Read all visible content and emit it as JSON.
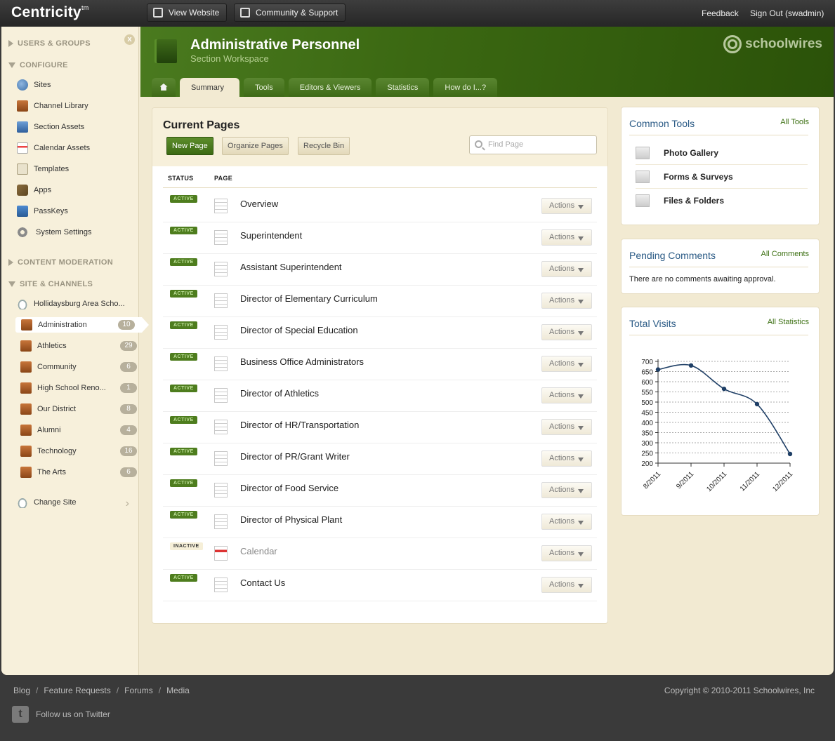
{
  "topbar": {
    "logo": "Centricity",
    "logo_tm": "tm",
    "view_website": "View Website",
    "community_support": "Community & Support",
    "feedback": "Feedback",
    "sign_out": "Sign Out (swadmin)"
  },
  "sidebar": {
    "close": "x",
    "sections": {
      "users_groups": "USERS & GROUPS",
      "configure": "CONFIGURE",
      "content_moderation": "CONTENT MODERATION",
      "site_channels": "SITE & CHANNELS"
    },
    "configure_items": [
      {
        "label": "Sites",
        "icon": "globe-icon"
      },
      {
        "label": "Channel Library",
        "icon": "briefcase-icon"
      },
      {
        "label": "Section Assets",
        "icon": "assets-icon"
      },
      {
        "label": "Calendar Assets",
        "icon": "calendar-icon"
      },
      {
        "label": "Templates",
        "icon": "template-icon"
      },
      {
        "label": "Apps",
        "icon": "apps-icon"
      },
      {
        "label": "PassKeys",
        "icon": "key-icon"
      },
      {
        "label": "System Settings",
        "icon": "gear-icon"
      }
    ],
    "site_name": "Hollidaysburg Area Scho...",
    "channels": [
      {
        "label": "Administration",
        "count": "10"
      },
      {
        "label": "Athletics",
        "count": "29"
      },
      {
        "label": "Community",
        "count": "6"
      },
      {
        "label": "High School Reno...",
        "count": "1"
      },
      {
        "label": "Our District",
        "count": "8"
      },
      {
        "label": "Alumni",
        "count": "4"
      },
      {
        "label": "Technology",
        "count": "16"
      },
      {
        "label": "The Arts",
        "count": "6"
      }
    ],
    "change_site": "Change Site"
  },
  "header": {
    "title": "Administrative Personnel",
    "subtitle": "Section Workspace",
    "brand": "schoolwires",
    "tabs": [
      "Summary",
      "Tools",
      "Editors & Viewers",
      "Statistics",
      "How do I...?"
    ]
  },
  "main": {
    "title": "Current Pages",
    "new_page": "New Page",
    "organize_pages": "Organize Pages",
    "recycle_bin": "Recycle Bin",
    "search_placeholder": "Find Page",
    "col_status": "STATUS",
    "col_page": "PAGE",
    "actions_label": "Actions",
    "pages": [
      {
        "status": "ACTIVE",
        "name": "Overview"
      },
      {
        "status": "ACTIVE",
        "name": "Superintendent"
      },
      {
        "status": "ACTIVE",
        "name": "Assistant Superintendent"
      },
      {
        "status": "ACTIVE",
        "name": "Director of Elementary Curriculum"
      },
      {
        "status": "ACTIVE",
        "name": "Director of Special Education"
      },
      {
        "status": "ACTIVE",
        "name": "Business Office Administrators"
      },
      {
        "status": "ACTIVE",
        "name": "Director of Athletics"
      },
      {
        "status": "ACTIVE",
        "name": "Director of HR/Transportation"
      },
      {
        "status": "ACTIVE",
        "name": "Director of PR/Grant Writer"
      },
      {
        "status": "ACTIVE",
        "name": "Director of Food Service"
      },
      {
        "status": "ACTIVE",
        "name": "Director of Physical Plant"
      },
      {
        "status": "INACTIVE",
        "name": "Calendar"
      },
      {
        "status": "ACTIVE",
        "name": "Contact Us"
      }
    ]
  },
  "common_tools": {
    "title": "Common Tools",
    "link": "All Tools",
    "items": [
      "Photo Gallery",
      "Forms & Surveys",
      "Files & Folders"
    ]
  },
  "pending_comments": {
    "title": "Pending Comments",
    "link": "All Comments",
    "message": "There are no comments awaiting approval."
  },
  "total_visits": {
    "title": "Total Visits",
    "link": "All Statistics"
  },
  "chart_data": {
    "type": "line",
    "categories": [
      "8/2011",
      "9/2011",
      "10/2011",
      "11/2011",
      "12/2011"
    ],
    "values": [
      660,
      680,
      565,
      490,
      245
    ],
    "ylim": [
      200,
      700
    ],
    "yticks": [
      700,
      650,
      600,
      550,
      500,
      450,
      400,
      350,
      300,
      250,
      200
    ],
    "grid": true,
    "color": "#1f3f66"
  },
  "footer": {
    "links": [
      "Blog",
      "Feature Requests",
      "Forums",
      "Media"
    ],
    "separator": "/",
    "copyright": "Copyright © 2010-2011   Schoolwires, Inc",
    "twitter": "Follow us on Twitter"
  }
}
